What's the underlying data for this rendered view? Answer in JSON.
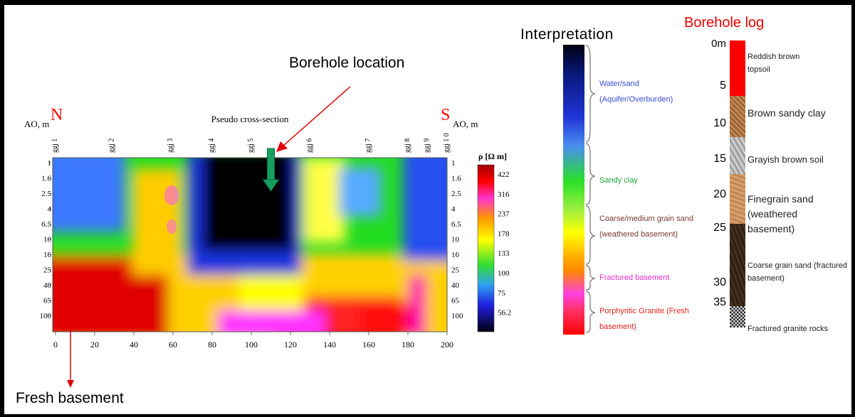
{
  "section": {
    "title": "Pseudo cross-section",
    "ylabel": "AO, m",
    "north": "N",
    "south": "S",
    "y_levels": [
      "1",
      "1.6",
      "2.5",
      "4",
      "6.5",
      "10",
      "16",
      "25",
      "40",
      "65",
      "100"
    ],
    "x_ticks": [
      "0",
      "20",
      "40",
      "60",
      "80",
      "100",
      "120",
      "140",
      "160",
      "180",
      "200"
    ],
    "electrodes": [
      {
        "label": "ggj 1",
        "x": 1
      },
      {
        "label": "ggj 2",
        "x": 30
      },
      {
        "label": "ggj 3",
        "x": 60
      },
      {
        "label": "ggj 4",
        "x": 81
      },
      {
        "label": "ggj 5",
        "x": 101
      },
      {
        "label": "ggj 6",
        "x": 131
      },
      {
        "label": "ggj 7",
        "x": 161
      },
      {
        "label": "ggj 8",
        "x": 181
      },
      {
        "label": "ggj 9",
        "x": 191
      },
      {
        "label": "ggj 1 0",
        "x": 201
      }
    ]
  },
  "legend": {
    "label": "ρ  [Ω m]",
    "values": [
      "422",
      "316",
      "237",
      "178",
      "133",
      "100",
      "75",
      "56.2"
    ]
  },
  "annotations": {
    "borehole_location": "Borehole location",
    "fresh_basement": "Fresh basement",
    "borehole_x": 110
  },
  "interpretation": {
    "title": "Interpretation",
    "zones": [
      {
        "label": "Water/sand (Aquifer/Overburden)",
        "color": "#3b4bd6"
      },
      {
        "label": "Sandy clay",
        "color": "#1fa43a"
      },
      {
        "label": "Coarse/medium grain sand (weathered basement)",
        "color": "#7a3838"
      },
      {
        "label": "Fractured basement",
        "color": "#e32ad2"
      },
      {
        "label": "Porphyritic Granite (Fresh basement)",
        "color": "#e02020"
      }
    ]
  },
  "borehole_log": {
    "title": "Borehole log",
    "depth_ticks": [
      "0m",
      "5",
      "10",
      "15",
      "20",
      "25",
      "30",
      "35"
    ],
    "layers": [
      {
        "label": "Reddish brown topsoil",
        "color": "#ff0000"
      },
      {
        "label": "Brown sandy clay",
        "color": "#b07a4a"
      },
      {
        "label": "Grayish brown soil",
        "color": "#b8b8b8"
      },
      {
        "label": "Finegrain sand (weathered basement)",
        "color": "#c8935d"
      },
      {
        "label": "Coarse grain sand (fractured basement)",
        "color": "#3a2a1a"
      },
      {
        "label": "Fractured granite rocks",
        "color": "#888888"
      }
    ]
  }
}
